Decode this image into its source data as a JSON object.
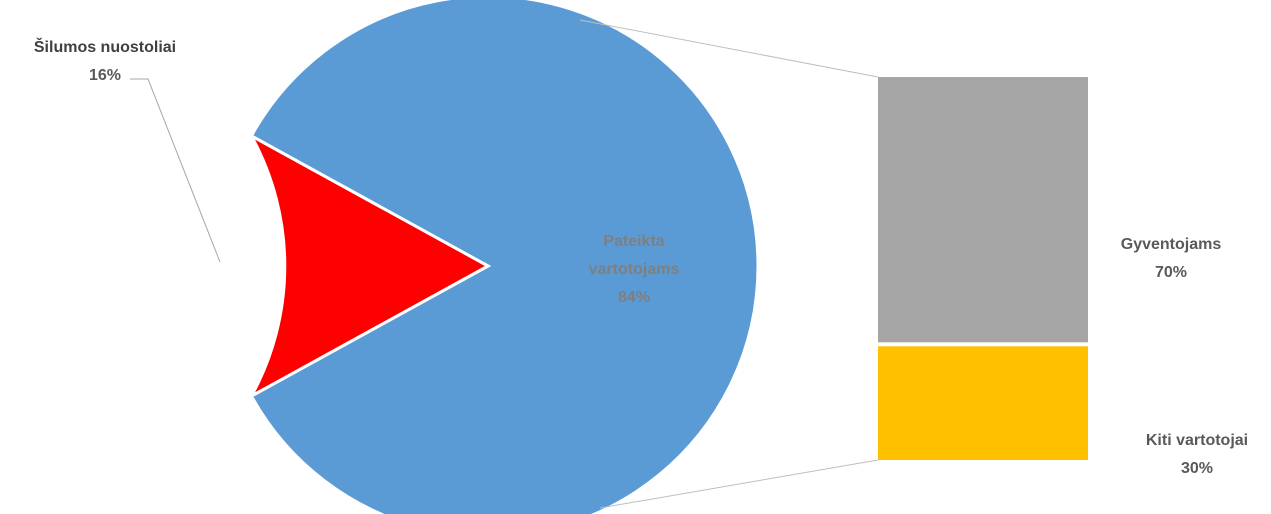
{
  "chart_data": {
    "type": "pie",
    "subtype": "bar-of-pie",
    "pie": {
      "slices": [
        {
          "label_lines": [
            "Pateikta",
            "vartotojams"
          ],
          "value_label": "84%",
          "value": 84,
          "color": "#5b9bd5",
          "label_color": "#7f7f7f",
          "exploded_detail": true
        },
        {
          "label_lines": [
            "Šilumos nuostoliai"
          ],
          "value_label": "16%",
          "value": 16,
          "color": "#ff0000",
          "label_color": "#404040"
        }
      ]
    },
    "detail_bar": {
      "segments": [
        {
          "label_lines": [
            "Gyventojams"
          ],
          "value_label": "70%",
          "value": 70,
          "color": "#a5a5a5",
          "label_color": "#595959"
        },
        {
          "label_lines": [
            "Kiti vartotojai"
          ],
          "value_label": "30%",
          "value": 30,
          "color": "#ffc000",
          "label_color": "#595959"
        }
      ]
    },
    "connector_color": "#bfbfbf",
    "leader_color": "#a6a6a6"
  }
}
